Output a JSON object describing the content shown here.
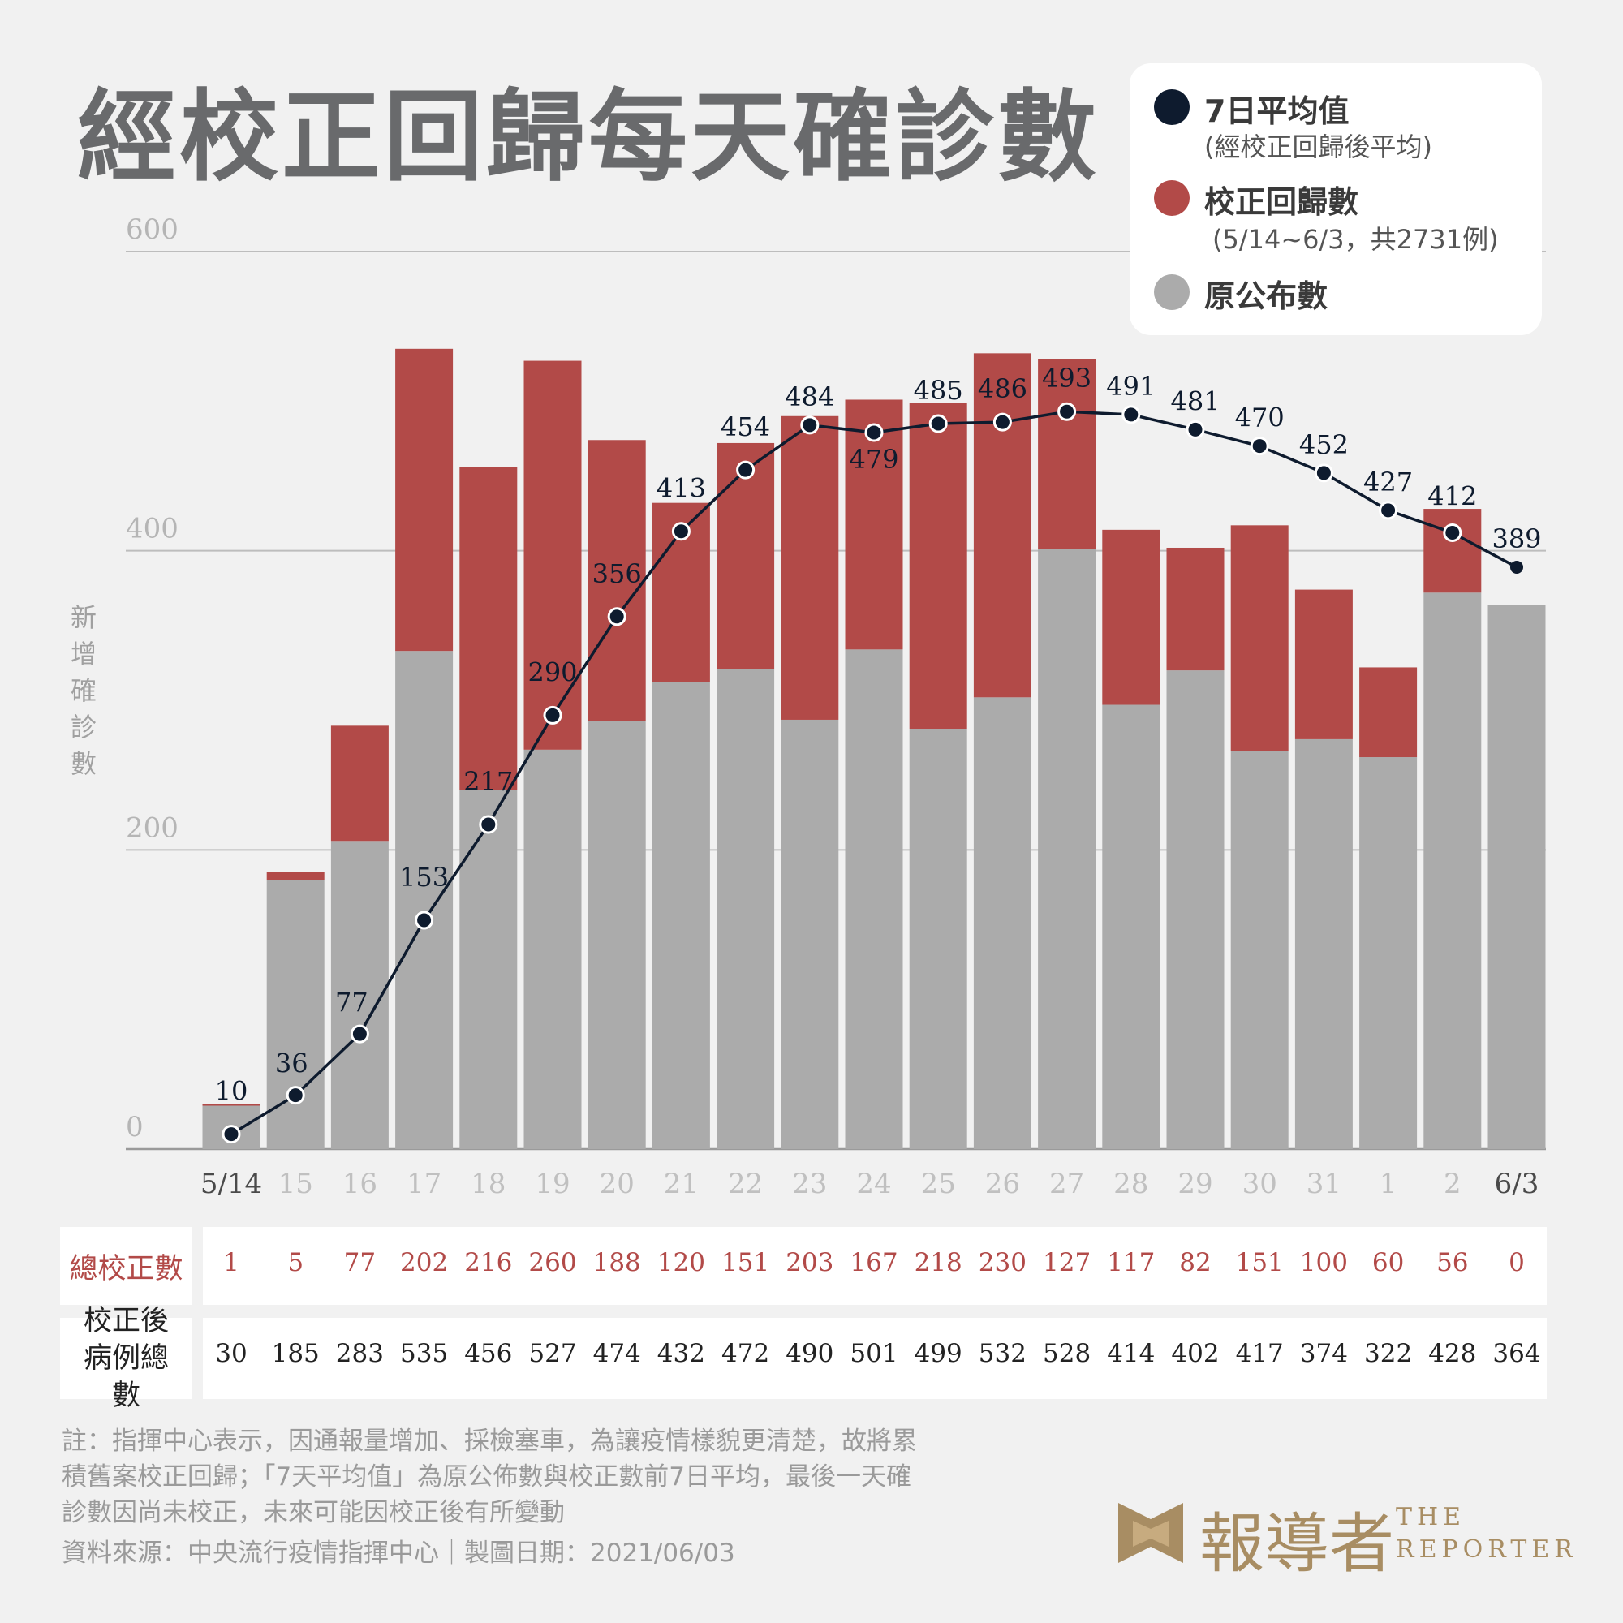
{
  "title": "經校正回歸每天確診數",
  "legend": {
    "avg_title": "7日平均值",
    "avg_sub": "(經校正回歸後平均)",
    "corr_title": "校正回歸數",
    "corr_sub": "(5/14~6/3，共2731例)",
    "orig_title": "原公布數"
  },
  "colors": {
    "original": "#ababab",
    "corrected": "#b24a48",
    "average": "#0e1b2e",
    "grid": "#bdbdbd",
    "brand": "#a88d63"
  },
  "table": {
    "row1_label": "總校正數",
    "row2_label": "校正後病例總數"
  },
  "notes": [
    "註：指揮中心表示，因通報量增加、採檢塞車，為讓疫情樣貌更清楚，故將累",
    "積舊案校正回歸；「7天平均值」為原公佈數與校正數前7日平均，最後一天確",
    "診數因尚未校正，未來可能因校正後有所變動",
    "資料來源：中央流行疫情指揮中心｜製圖日期：2021/06/03"
  ],
  "brand": {
    "zh": "報導者",
    "en_line1": "THE",
    "en_line2": "REPORTER"
  },
  "chart_data": {
    "type": "bar",
    "stacked": true,
    "ylabel": "新增確診數",
    "ylim": [
      0,
      600
    ],
    "yticks": [
      0,
      200,
      400,
      600
    ],
    "grid": true,
    "legend_position": "top-right",
    "categories": [
      "5/14",
      "15",
      "16",
      "17",
      "18",
      "19",
      "20",
      "21",
      "22",
      "23",
      "24",
      "25",
      "26",
      "27",
      "28",
      "29",
      "30",
      "31",
      "1",
      "2",
      "6/3"
    ],
    "series": [
      {
        "name": "原公布數",
        "values": [
          29,
          180,
          206,
          333,
          240,
          267,
          286,
          312,
          321,
          287,
          334,
          281,
          302,
          401,
          297,
          320,
          266,
          274,
          262,
          372,
          364
        ]
      },
      {
        "name": "校正回歸數",
        "values": [
          1,
          5,
          77,
          202,
          216,
          260,
          188,
          120,
          151,
          203,
          167,
          218,
          230,
          127,
          117,
          82,
          151,
          100,
          60,
          56,
          0
        ]
      },
      {
        "name": "7日平均值",
        "type": "line",
        "values": [
          10,
          36,
          77,
          153,
          217,
          290,
          356,
          413,
          454,
          484,
          479,
          485,
          486,
          493,
          491,
          481,
          470,
          452,
          427,
          412,
          389
        ]
      }
    ],
    "row_corrections": [
      "1",
      "5",
      "77",
      "202",
      "216",
      "260",
      "188",
      "120",
      "151",
      "203",
      "167",
      "218",
      "230",
      "127",
      "117",
      "82",
      "151",
      "100",
      "60",
      "56",
      "0"
    ],
    "row_totals": [
      "30",
      "185",
      "283",
      "535",
      "456",
      "527",
      "474",
      "432",
      "472",
      "490",
      "501",
      "499",
      "532",
      "528",
      "414",
      "402",
      "417",
      "374",
      "322",
      "428",
      "364"
    ]
  }
}
